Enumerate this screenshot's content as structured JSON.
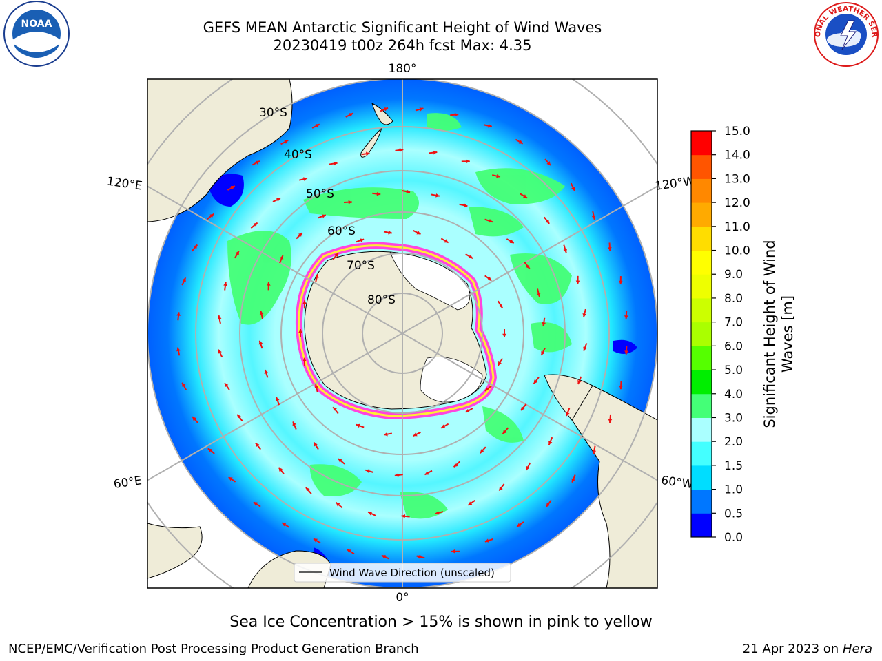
{
  "title": {
    "line1": "GEFS MEAN Antarctic Significant Height of Wind Waves",
    "line2": "20230419 t00z 264h fcst   Max: 4.35"
  },
  "map": {
    "projection": "south-polar-stereographic",
    "longitude_labels": [
      "180°",
      "120°E",
      "120°W",
      "60°E",
      "60°W",
      "0°"
    ],
    "latitude_labels": [
      "30°S",
      "40°S",
      "50°S",
      "60°S",
      "70°S",
      "80°S"
    ],
    "legend_label": "Wind Wave Direction (unscaled)",
    "colors": {
      "land": "#efecd8",
      "ice_shelf": "#ffffff",
      "sea_ice": "#ff44dd",
      "arrows": "#ee1111",
      "grid": "#b0b0b0"
    }
  },
  "colorbar": {
    "label": "Significant Height of Wind Waves [m]",
    "label_line1": "Significant Height of Wind",
    "label_line2": "Waves [m]",
    "ticks": [
      "0.0",
      "0.5",
      "1.0",
      "1.5",
      "2.0",
      "3.0",
      "4.0",
      "5.0",
      "6.0",
      "7.0",
      "8.0",
      "9.0",
      "10.0",
      "11.0",
      "12.0",
      "13.0",
      "14.0",
      "15.0"
    ],
    "colors": [
      "#0000ff",
      "#0077ff",
      "#00ddff",
      "#44ffff",
      "#aaffff",
      "#44ff77",
      "#00ee00",
      "#55ff00",
      "#aaff00",
      "#ccff00",
      "#eeff00",
      "#ffff00",
      "#ffdd00",
      "#ffaa00",
      "#ff8800",
      "#ff5500",
      "#ff0000"
    ]
  },
  "logos": {
    "noaa": "NOAA",
    "nws": "NATIONAL WEATHER SERVICE"
  },
  "footer": {
    "caption": "Sea Ice Concentration > 15% is shown in pink to yellow",
    "credit": "NCEP/EMC/Verification Post Processing Product Generation Branch",
    "date": "21 Apr 2023 on",
    "machine": "Hera"
  }
}
